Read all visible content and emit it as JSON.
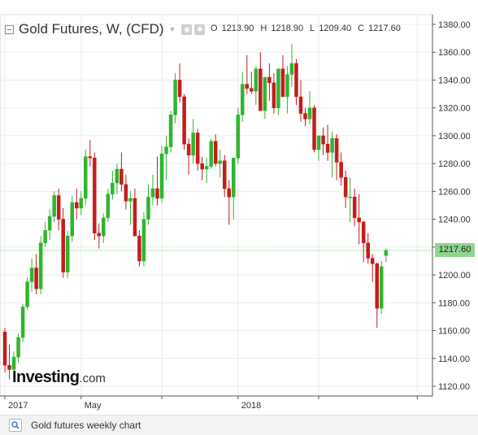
{
  "header": {
    "title": "Gold Futures, W, (CFD)",
    "ohlc": {
      "o_label": "O",
      "o": "1213.90",
      "h_label": "H",
      "h": "1218.90",
      "l_label": "L",
      "l": "1209.40",
      "c_label": "C",
      "c": "1217.60"
    }
  },
  "watermark": {
    "brand": "Investing",
    "suffix": ".com"
  },
  "caption": {
    "text": "Gold futures weekly chart",
    "icon": "zoom-icon"
  },
  "last_price_label": "1217.60",
  "colors": {
    "up": "#2fb52f",
    "down": "#c41c1c",
    "last_line": "#6fcf6f",
    "badge": "#8ed68e"
  },
  "chart_data": {
    "type": "candlestick",
    "timeframe": "W",
    "x_tick_labels": [
      {
        "label": "2017",
        "week": 0
      },
      {
        "label": "May",
        "week": 17
      },
      {
        "label": "2018",
        "week": 52
      }
    ],
    "y_ticks": [
      1380,
      1360,
      1340,
      1320,
      1300,
      1280,
      1260,
      1240,
      1220,
      1200,
      1180,
      1160,
      1140,
      1120
    ],
    "y_range": [
      1113,
      1387
    ],
    "last_price": 1217.6,
    "grid": true,
    "series": [
      [
        1159,
        1162,
        1130,
        1135
      ],
      [
        1135,
        1150,
        1125,
        1132
      ],
      [
        1132,
        1145,
        1127,
        1141
      ],
      [
        1141,
        1158,
        1137,
        1155
      ],
      [
        1155,
        1179,
        1152,
        1177
      ],
      [
        1177,
        1198,
        1175,
        1195
      ],
      [
        1195,
        1212,
        1188,
        1205
      ],
      [
        1205,
        1215,
        1186,
        1190
      ],
      [
        1190,
        1228,
        1186,
        1223
      ],
      [
        1223,
        1238,
        1220,
        1232
      ],
      [
        1232,
        1247,
        1225,
        1242
      ],
      [
        1242,
        1260,
        1238,
        1257
      ],
      [
        1257,
        1262,
        1232,
        1240
      ],
      [
        1240,
        1248,
        1198,
        1202
      ],
      [
        1202,
        1232,
        1198,
        1228
      ],
      [
        1228,
        1257,
        1224,
        1252
      ],
      [
        1252,
        1262,
        1240,
        1248
      ],
      [
        1248,
        1260,
        1243,
        1255
      ],
      [
        1255,
        1290,
        1250,
        1285
      ],
      [
        1285,
        1297,
        1278,
        1284
      ],
      [
        1284,
        1288,
        1225,
        1230
      ],
      [
        1230,
        1237,
        1219,
        1228
      ],
      [
        1228,
        1244,
        1223,
        1241
      ],
      [
        1241,
        1262,
        1238,
        1258
      ],
      [
        1258,
        1275,
        1254,
        1266
      ],
      [
        1266,
        1280,
        1258,
        1276
      ],
      [
        1276,
        1288,
        1260,
        1265
      ],
      [
        1265,
        1272,
        1247,
        1253
      ],
      [
        1253,
        1260,
        1236,
        1255
      ],
      [
        1255,
        1262,
        1235,
        1228
      ],
      [
        1228,
        1232,
        1206,
        1210
      ],
      [
        1210,
        1245,
        1206,
        1240
      ],
      [
        1240,
        1265,
        1236,
        1256
      ],
      [
        1256,
        1272,
        1250,
        1262
      ],
      [
        1262,
        1285,
        1250,
        1255
      ],
      [
        1255,
        1293,
        1252,
        1287
      ],
      [
        1287,
        1300,
        1268,
        1292
      ],
      [
        1292,
        1318,
        1288,
        1315
      ],
      [
        1315,
        1345,
        1309,
        1340
      ],
      [
        1340,
        1352,
        1324,
        1328
      ],
      [
        1328,
        1330,
        1290,
        1294
      ],
      [
        1294,
        1298,
        1272,
        1286
      ],
      [
        1286,
        1312,
        1280,
        1302
      ],
      [
        1302,
        1305,
        1275,
        1280
      ],
      [
        1280,
        1285,
        1268,
        1276
      ],
      [
        1276,
        1284,
        1266,
        1278
      ],
      [
        1278,
        1298,
        1276,
        1296
      ],
      [
        1296,
        1301,
        1278,
        1280
      ],
      [
        1280,
        1290,
        1270,
        1282
      ],
      [
        1282,
        1286,
        1256,
        1262
      ],
      [
        1262,
        1268,
        1236,
        1256
      ],
      [
        1256,
        1272,
        1240,
        1284
      ],
      [
        1284,
        1320,
        1280,
        1315
      ],
      [
        1315,
        1346,
        1310,
        1337
      ],
      [
        1337,
        1358,
        1330,
        1334
      ],
      [
        1334,
        1346,
        1330,
        1332
      ],
      [
        1332,
        1350,
        1322,
        1348
      ],
      [
        1348,
        1360,
        1338,
        1318
      ],
      [
        1318,
        1340,
        1312,
        1342
      ],
      [
        1342,
        1352,
        1325,
        1338
      ],
      [
        1338,
        1345,
        1316,
        1320
      ],
      [
        1320,
        1342,
        1315,
        1348
      ],
      [
        1348,
        1358,
        1330,
        1328
      ],
      [
        1328,
        1350,
        1316,
        1344
      ],
      [
        1344,
        1366,
        1335,
        1352
      ],
      [
        1352,
        1355,
        1322,
        1328
      ],
      [
        1328,
        1340,
        1310,
        1316
      ],
      [
        1316,
        1320,
        1307,
        1312
      ],
      [
        1312,
        1332,
        1308,
        1320
      ],
      [
        1320,
        1322,
        1288,
        1290
      ],
      [
        1290,
        1298,
        1282,
        1300
      ],
      [
        1300,
        1306,
        1286,
        1294
      ],
      [
        1294,
        1308,
        1282,
        1288
      ],
      [
        1288,
        1303,
        1270,
        1298
      ],
      [
        1298,
        1301,
        1268,
        1281
      ],
      [
        1281,
        1288,
        1264,
        1270
      ],
      [
        1270,
        1275,
        1248,
        1256
      ],
      [
        1256,
        1270,
        1238,
        1256
      ],
      [
        1256,
        1262,
        1235,
        1241
      ],
      [
        1241,
        1258,
        1222,
        1238
      ],
      [
        1238,
        1239,
        1209,
        1223
      ],
      [
        1223,
        1230,
        1208,
        1212
      ],
      [
        1212,
        1215,
        1195,
        1208
      ],
      [
        1208,
        1209,
        1162,
        1176
      ],
      [
        1176,
        1210,
        1172,
        1206
      ],
      [
        1213.9,
        1218.9,
        1209.4,
        1217.6
      ]
    ]
  }
}
